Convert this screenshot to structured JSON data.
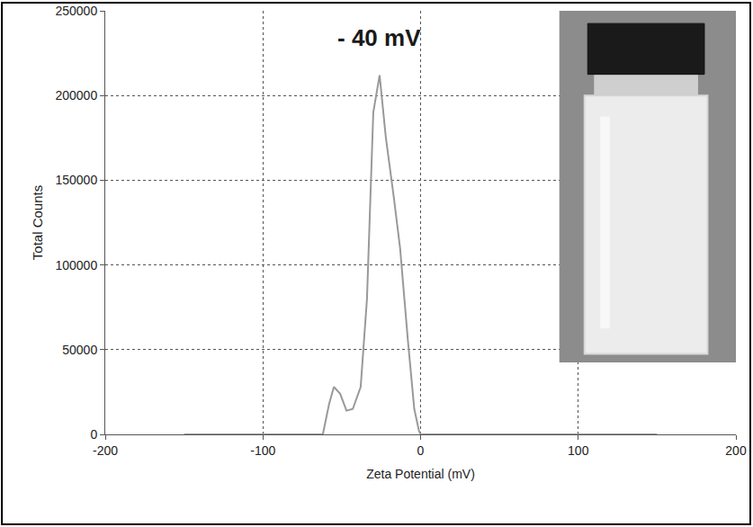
{
  "chart_data": {
    "type": "line",
    "x_label": "Zeta Potential (mV)",
    "y_label": "Total Counts",
    "annotation": "- 40 mV",
    "x": [
      -150,
      -62,
      -58,
      -55,
      -51,
      -47,
      -43,
      -38,
      -34,
      -30,
      -26,
      -22,
      -17,
      -13,
      -8,
      -4,
      -1,
      0,
      150
    ],
    "values": [
      0,
      0,
      18000,
      28000,
      24000,
      14000,
      15000,
      28000,
      80000,
      190000,
      212000,
      175000,
      140000,
      110000,
      55000,
      15000,
      2000,
      0,
      0
    ],
    "color": "#999999",
    "xlim": [
      -200,
      200
    ],
    "xticks": [
      -200,
      -100,
      0,
      100,
      200
    ],
    "ylim": [
      0,
      250000
    ],
    "yticks": [
      0,
      50000,
      100000,
      150000,
      200000,
      250000
    ],
    "grid": true
  }
}
